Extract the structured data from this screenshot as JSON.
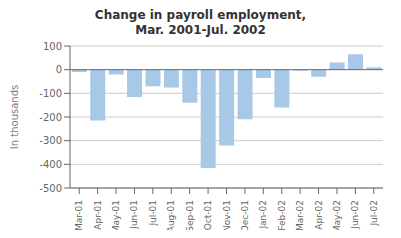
{
  "chart_data": {
    "type": "bar",
    "title": "Change in payroll employment,",
    "subtitle": "Mar. 2001-Jul. 2002",
    "ylabel": "In thousands",
    "categories": [
      "Mar-01",
      "Apr-01",
      "May-01",
      "Jun-01",
      "Jul-01",
      "Aug-01",
      "Sep-01",
      "Oct-01",
      "Nov-01",
      "Dec-01",
      "Jan-02",
      "Feb-02",
      "Mar-02",
      "Apr-02",
      "May-02",
      "Jun-02",
      "Jul-02"
    ],
    "values": [
      -10,
      -215,
      -20,
      -115,
      -70,
      -75,
      -140,
      -415,
      -320,
      -210,
      -35,
      -160,
      -5,
      -30,
      30,
      65,
      10
    ],
    "color": "#a8c8e8",
    "ylim": [
      -500,
      100
    ],
    "yticks": [
      -500,
      -400,
      -300,
      -200,
      -100,
      0,
      100
    ],
    "grid": true
  }
}
